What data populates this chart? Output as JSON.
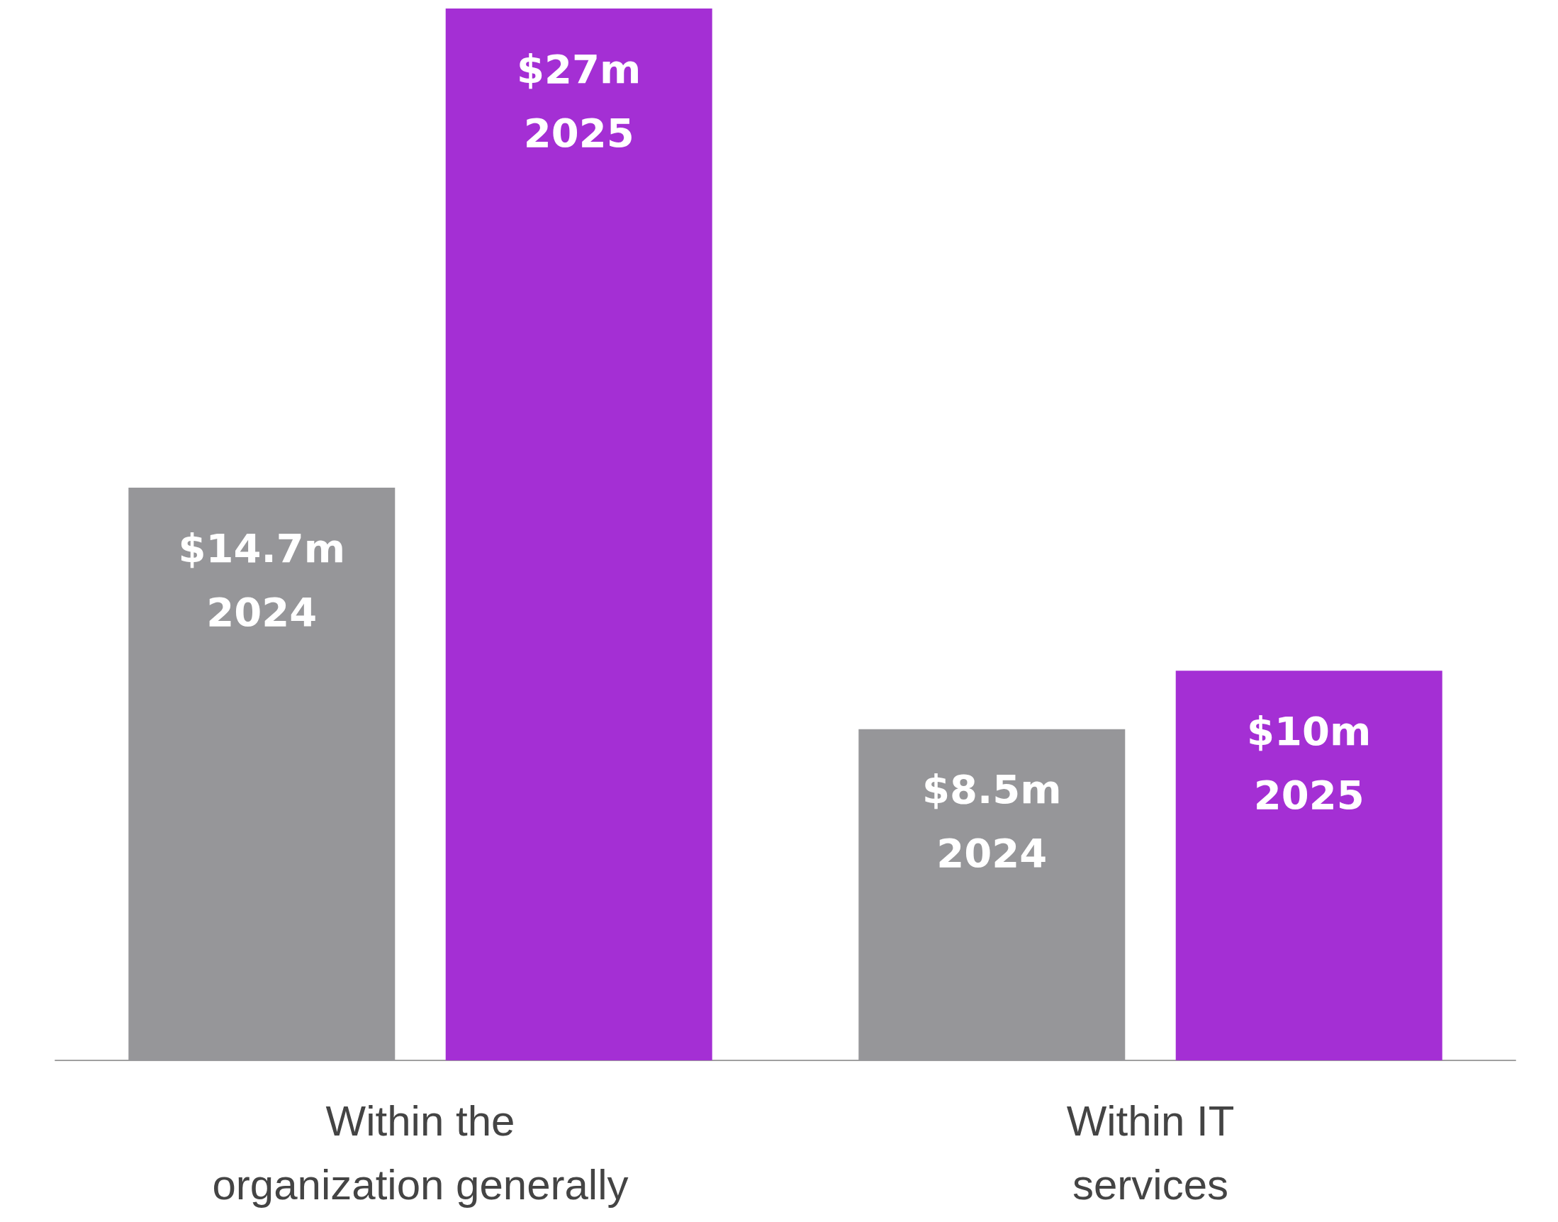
{
  "chart_data": {
    "type": "bar",
    "categories": [
      "Within the\norganization generally",
      "Within IT\nservices"
    ],
    "series": [
      {
        "name": "2024",
        "color": "#969699",
        "values": [
          14.7,
          8.5
        ],
        "value_labels": [
          "$14.7m",
          "$8.5m"
        ]
      },
      {
        "name": "2025",
        "color": "#a42fd4",
        "values": [
          27,
          10
        ],
        "value_labels": [
          "$27m",
          "$10m"
        ]
      }
    ],
    "grid": false,
    "legend": false
  }
}
